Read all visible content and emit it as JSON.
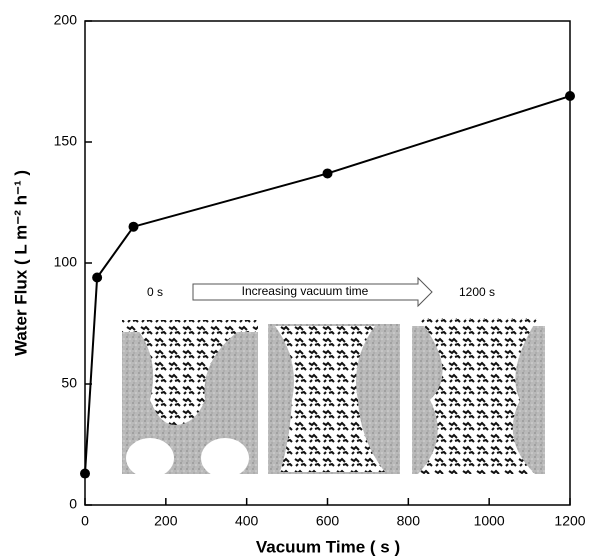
{
  "chart_data": {
    "type": "line",
    "xlabel": "Vacuum Time ( s )",
    "ylabel": "Water Flux ( L m⁻² h⁻¹ )",
    "annotations": [
      "0 s",
      "Increasing vacuum time",
      "1200 s"
    ],
    "x": [
      0,
      30,
      120,
      600,
      1200
    ],
    "series": [
      {
        "color": "#000000",
        "values": [
          13,
          94,
          115,
          137,
          169
        ]
      }
    ],
    "xlim": [
      0,
      1200
    ],
    "xticks": [
      0,
      200,
      400,
      600,
      800,
      1000,
      1200
    ],
    "ylim": [
      0,
      200
    ],
    "yticks": [
      0,
      50,
      100,
      150,
      200
    ],
    "grid": false
  }
}
